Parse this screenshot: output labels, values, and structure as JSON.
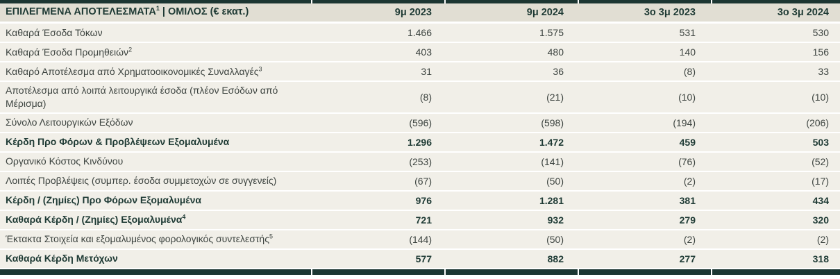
{
  "table": {
    "title": {
      "main": "ΕΠΙΛΕΓΜΕΝΑ ΑΠΟΤΕΛΕΣΜΑΤΑ",
      "sup": "1",
      "rest": " | ΟΜΙΛΟΣ (€ εκατ.)"
    },
    "columns": [
      "9μ 2023",
      "9μ 2024",
      "3ο 3μ 2023",
      "3ο 3μ 2024"
    ],
    "rows": [
      {
        "label": "Καθαρά Έσοδα Τόκων",
        "sup": "",
        "bold": false,
        "values": [
          "1.466",
          "1.575",
          "531",
          "530"
        ]
      },
      {
        "label": "Καθαρά Έσοδα Προμηθειών",
        "sup": "2",
        "bold": false,
        "values": [
          "403",
          "480",
          "140",
          "156"
        ]
      },
      {
        "label": "Καθαρό Αποτέλεσμα από Χρηματοοικονομικές Συναλλαγές",
        "sup": "3",
        "bold": false,
        "values": [
          "31",
          "36",
          "(8)",
          "33"
        ]
      },
      {
        "label": "Αποτέλεσμα από λοιπά λειτουργικά έσοδα (πλέον Εσόδων από Μέρισμα)",
        "sup": "",
        "bold": false,
        "values": [
          "(8)",
          "(21)",
          "(10)",
          "(10)"
        ]
      },
      {
        "label": "Σύνολο Λειτουργικών Εξόδων",
        "sup": "",
        "bold": false,
        "values": [
          "(596)",
          "(598)",
          "(194)",
          "(206)"
        ]
      },
      {
        "label": "Κέρδη Προ Φόρων & Προβλέψεων Εξομαλυμένα",
        "sup": "",
        "bold": true,
        "values": [
          "1.296",
          "1.472",
          "459",
          "503"
        ]
      },
      {
        "label": "Οργανικό Κόστος Κινδύνου",
        "sup": "",
        "bold": false,
        "values": [
          "(253)",
          "(141)",
          "(76)",
          "(52)"
        ]
      },
      {
        "label": "Λοιπές Προβλέψεις (συμπερ. έσοδα συμμετοχών σε συγγενείς)",
        "sup": "",
        "bold": false,
        "values": [
          "(67)",
          "(50)",
          "(2)",
          "(17)"
        ]
      },
      {
        "label": "Κέρδη / (Ζημίες) Προ Φόρων Εξομαλυμένα",
        "sup": "",
        "bold": true,
        "values": [
          "976",
          "1.281",
          "381",
          "434"
        ]
      },
      {
        "label": "Καθαρά Κέρδη / (Ζημίες) Εξομαλυμένα",
        "sup": "4",
        "bold": true,
        "values": [
          "721",
          "932",
          "279",
          "320"
        ]
      },
      {
        "label": "Έκτακτα Στοιχεία και εξομαλυμένος φορολογικός συντελεστής",
        "sup": "5",
        "bold": false,
        "values": [
          "(144)",
          "(50)",
          "(2)",
          "(2)"
        ]
      },
      {
        "label": "Καθαρά Κέρδη Μετόχων",
        "sup": "",
        "bold": true,
        "values": [
          "577",
          "882",
          "277",
          "318"
        ]
      }
    ]
  },
  "colors": {
    "border_dark_green": "#1c3632",
    "header_bg": "#e1ded3",
    "row_bg": "#f1efe8",
    "text_bold_green": "#1e3a34",
    "text_regular": "#3d4440",
    "row_separator": "#ffffff"
  }
}
